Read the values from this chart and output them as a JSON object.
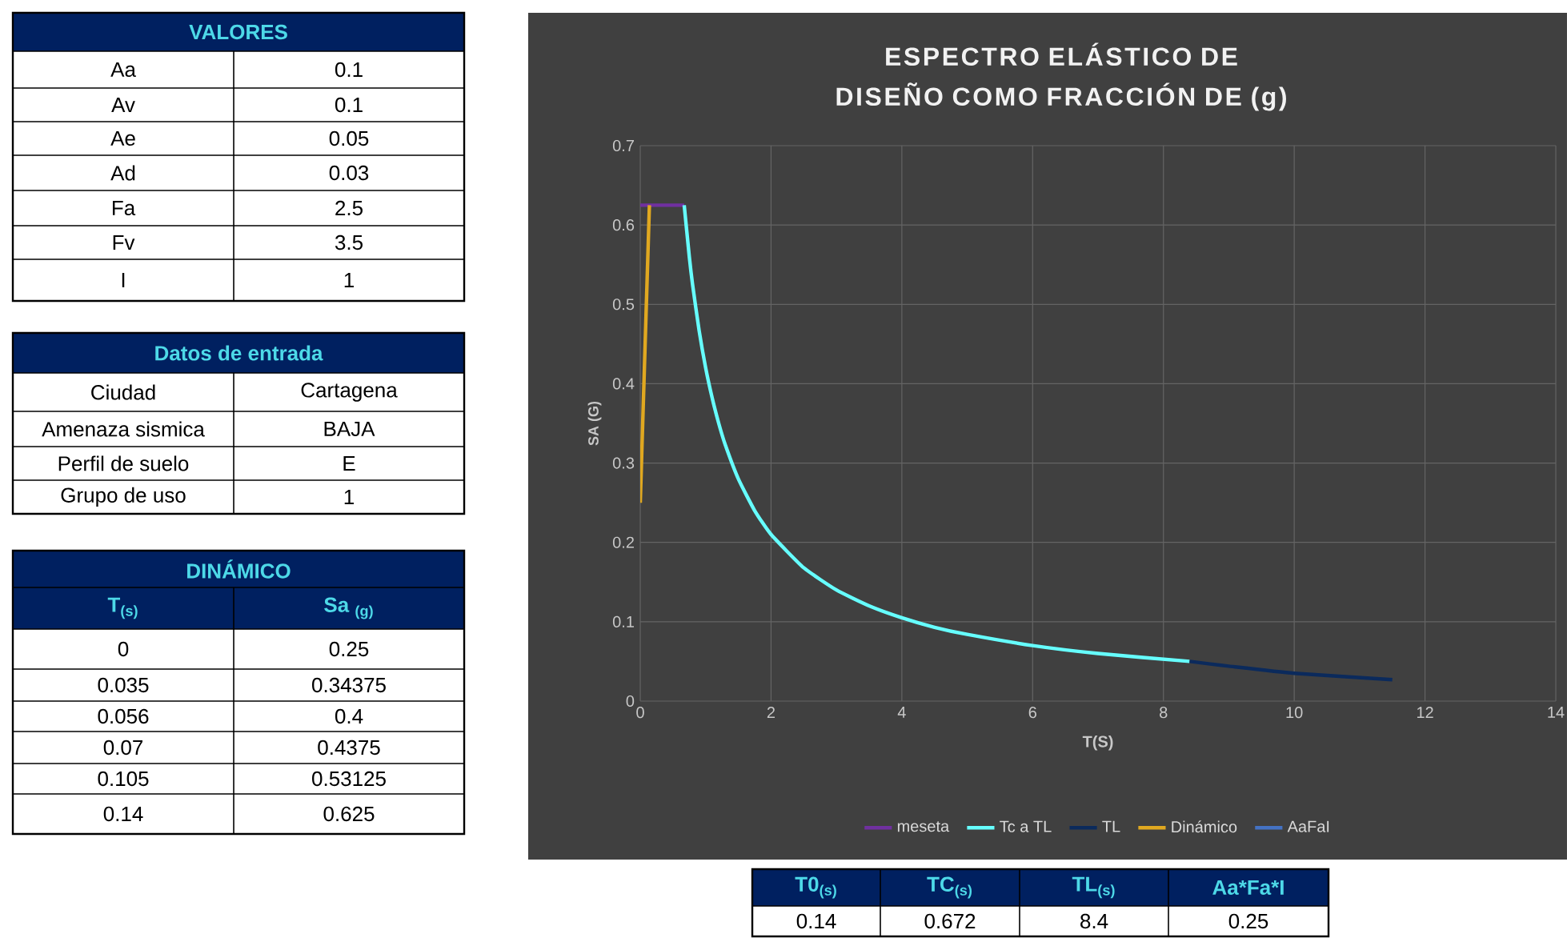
{
  "chart_data": [
    {
      "type": "other",
      "title": "VALORES",
      "annotations": [
        "Aa",
        "0.1",
        "Av",
        "0.1",
        "Ae",
        "0.05",
        "Ad",
        "0.03",
        "Fa",
        "2.5",
        "Fv",
        "3.5",
        "I",
        "1"
      ]
    },
    {
      "type": "other",
      "title": "Datos de entrada",
      "annotations": [
        "Ciudad",
        "Cartagena",
        "Amenaza sismica",
        "BAJA",
        "Perfil de suelo",
        "E",
        "Grupo de uso",
        "1"
      ]
    },
    {
      "type": "other",
      "title": "DINÁMICO",
      "annotations": [
        "T$_{(s)}$",
        "Sa $_{(g)}$",
        "0",
        "0.25",
        "0.035",
        "0.34375",
        "0.056",
        "0.4",
        "0.07",
        "0.4375",
        "0.105",
        "0.53125",
        "0.14",
        "0.625"
      ]
    },
    {
      "type": "line",
      "title": "ESPECTRO ELÁSTICO DE DISEÑO COMO FRACCIÓN DE (g)",
      "xlabel": "T(S)",
      "ylabel": "SA (G)",
      "xlim": [
        0,
        14
      ],
      "ylim": [
        0,
        0.7
      ],
      "xticks": [
        0,
        2,
        4,
        6,
        8,
        10,
        12,
        14
      ],
      "yticks": [
        0,
        0.1,
        0.2,
        0.3,
        0.4,
        0.5,
        0.6,
        0.7
      ],
      "grid": true,
      "legend": "bottom",
      "series": [
        {
          "name": "meseta",
          "color": "#7030a0",
          "x": [
            0,
            0.672
          ],
          "values": [
            0.625,
            0.625
          ]
        },
        {
          "name": "Tc a TL",
          "color": "#66ffff",
          "x": [
            0.672,
            0.75,
            0.8,
            0.9,
            1,
            1.1,
            1.2,
            1.3,
            1.5,
            1.75,
            2,
            2.5,
            3,
            3.5,
            4,
            4.5,
            5,
            6,
            7,
            8.4
          ],
          "values": [
            0.625,
            0.56,
            0.525,
            0.467,
            0.42,
            0.382,
            0.35,
            0.323,
            0.28,
            0.24,
            0.21,
            0.168,
            0.14,
            0.12,
            0.105,
            0.093,
            0.084,
            0.07,
            0.06,
            0.05
          ]
        },
        {
          "name": "TL",
          "color": "#0b2a5c",
          "x": [
            8.4,
            9,
            10,
            11.5
          ],
          "values": [
            0.05,
            0.044,
            0.035,
            0.027
          ]
        },
        {
          "name": "Dinámico",
          "color": "#e0a820",
          "x": [
            0,
            0.035,
            0.056,
            0.07,
            0.105,
            0.14
          ],
          "values": [
            0.25,
            0.34375,
            0.4,
            0.4375,
            0.53125,
            0.625
          ]
        },
        {
          "name": "AaFaI",
          "color": "#4472c4",
          "values": [
            null
          ]
        }
      ]
    },
    {
      "type": "other",
      "annotations": [
        "T0$_{(s)}$",
        "TC$_{(s)}$",
        "TL$_{(s)}$",
        "Aa*Fa*I",
        "0.14",
        "0.672",
        "8.4",
        "0.25"
      ]
    }
  ]
}
